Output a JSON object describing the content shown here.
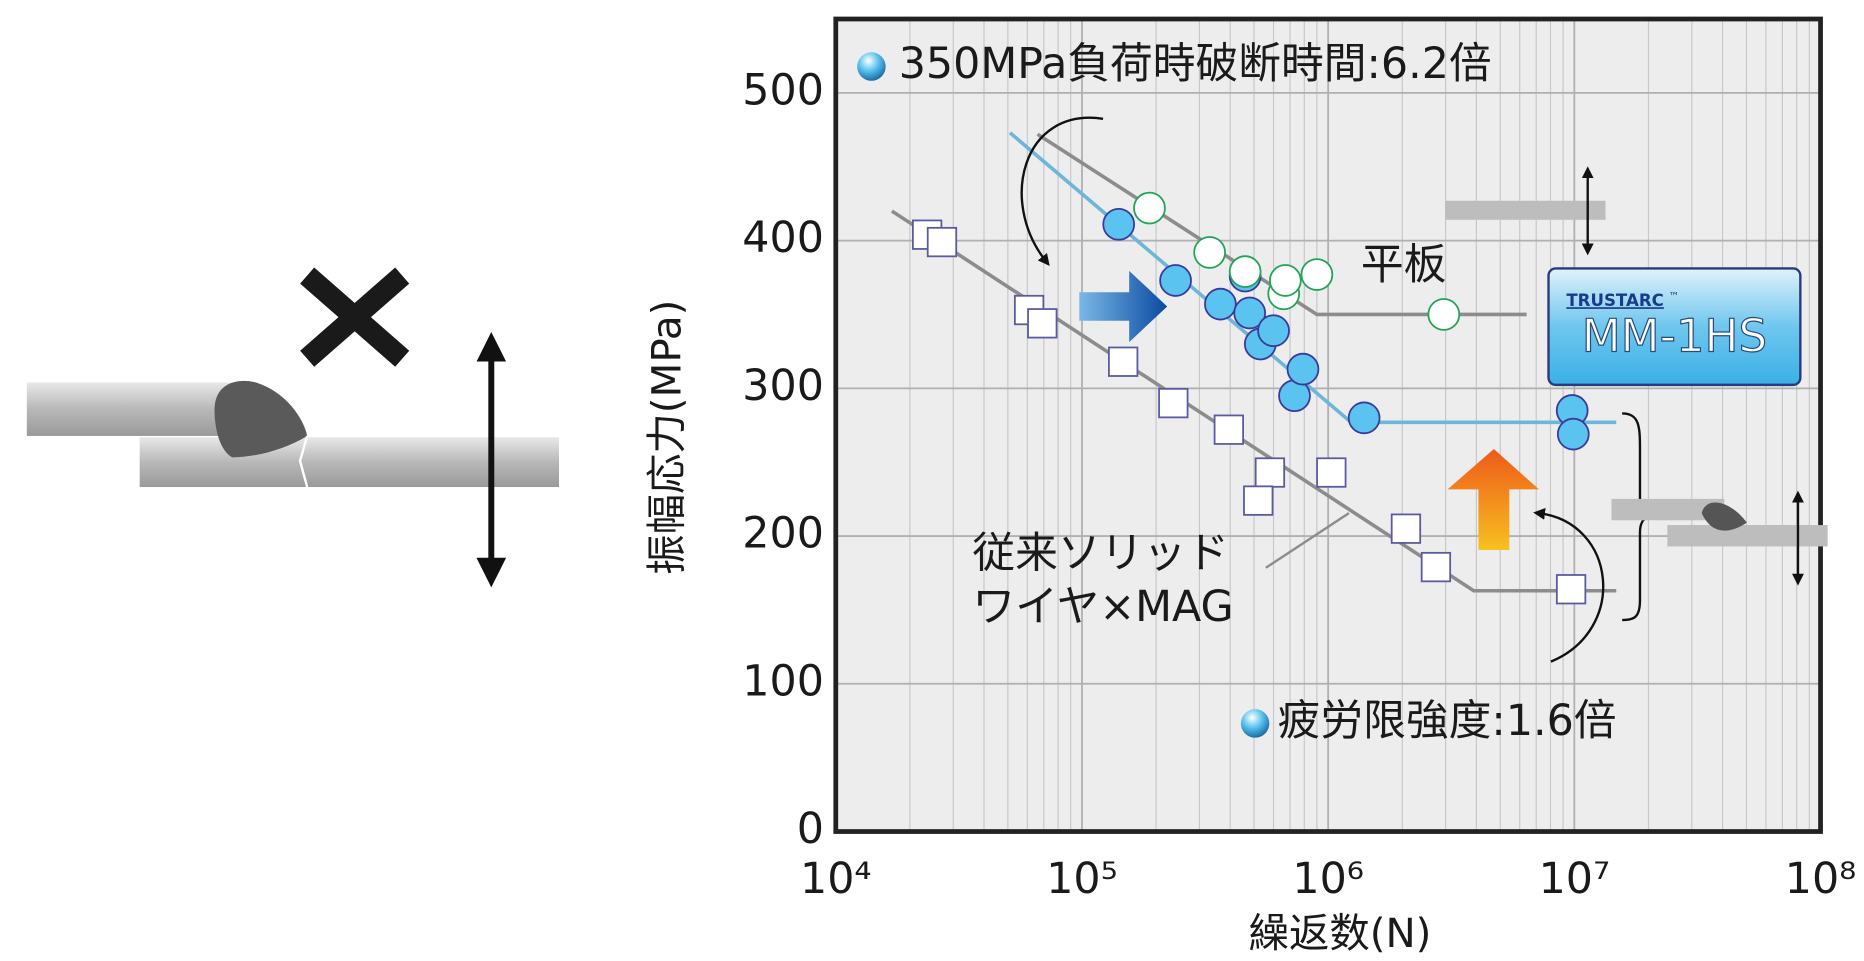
{
  "chart_data": {
    "type": "scatter",
    "xlabel": "繰返数(N)",
    "ylabel": "振幅応力(MPa)",
    "xlog": true,
    "xlim": [
      10000,
      100000000
    ],
    "ylim": [
      0,
      550
    ],
    "xticks": [
      {
        "value": 10000,
        "label": "10⁴"
      },
      {
        "value": 100000,
        "label": "10⁵"
      },
      {
        "value": 1000000,
        "label": "10⁶"
      },
      {
        "value": 10000000,
        "label": "10⁷"
      },
      {
        "value": 100000000,
        "label": "10⁸"
      }
    ],
    "yticks": [
      0,
      100,
      200,
      300,
      400,
      500
    ],
    "grid": true,
    "series": [
      {
        "marker": "square",
        "fill": "#ffffff",
        "color": "#5a5aa0",
        "x": [
          23500,
          27000,
          61000,
          69000,
          147000,
          235000,
          395000,
          580000,
          520000,
          1030000,
          2070000,
          2740000,
          9700000
        ],
        "values": [
          404,
          399,
          353,
          344,
          318,
          290,
          272,
          243,
          224,
          243,
          205,
          179,
          164
        ]
      },
      {
        "marker": "circle",
        "fill": "#5bc3ef",
        "color": "#3a3a9a",
        "x": [
          141000,
          240000,
          365000,
          460000,
          480000,
          530000,
          600000,
          730000,
          790000,
          1400000,
          9800000,
          9900000
        ],
        "values": [
          411,
          373,
          357,
          376,
          351,
          330,
          339,
          295,
          313,
          280,
          285,
          269
        ]
      },
      {
        "marker": "circle",
        "fill": "#ffffff",
        "color": "#22a455",
        "x": [
          188000,
          330000,
          460000,
          660000,
          670000,
          900000,
          2950000
        ],
        "values": [
          422,
          392,
          379,
          364,
          373,
          377,
          350
        ]
      }
    ],
    "fits": [
      {
        "color": "#8c8c8c",
        "x": [
          66000,
          900000,
          6400000
        ],
        "values": [
          472,
          350,
          350
        ]
      },
      {
        "color": "#6cb6d9",
        "x": [
          51000,
          1240000,
          14800000
        ],
        "values": [
          473,
          277,
          277
        ]
      },
      {
        "color": "#8c8c8c",
        "x": [
          16900,
          3900000,
          14800000
        ],
        "values": [
          420,
          163,
          163
        ]
      }
    ],
    "annotations": {
      "time_ratio": "350MPa負荷時破断時間:6.2倍",
      "fatigue_ratio": "疲労限強度:1.6倍",
      "plate": "平板",
      "conventional_1": "従来ソリッド",
      "conventional_2": "ワイヤ×MAG",
      "brand": "TRUSTARC",
      "tm": "™",
      "product": "MM-1HS"
    }
  }
}
